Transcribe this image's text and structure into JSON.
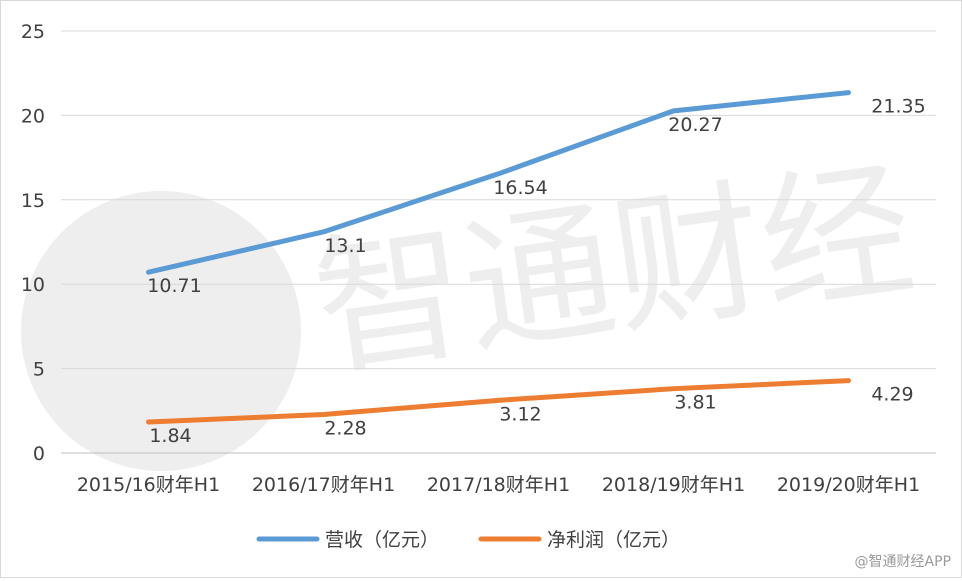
{
  "chart_data": {
    "type": "line",
    "title": "",
    "xlabel": "",
    "ylabel": "",
    "categories": [
      "2015/16财年H1",
      "2016/17财年H1",
      "2017/18财年H1",
      "2018/19财年H1",
      "2019/20财年H1"
    ],
    "ylim": [
      0,
      25
    ],
    "yticks": [
      0,
      5,
      10,
      15,
      20,
      25
    ],
    "grid": true,
    "legend_position": "bottom",
    "series": [
      {
        "name": "营收（亿元）",
        "color": "#5b9bd5",
        "values": [
          10.71,
          13.1,
          16.54,
          20.27,
          21.35
        ],
        "labels": [
          "10.71",
          "13.1",
          "16.54",
          "20.27",
          "21.35"
        ]
      },
      {
        "name": "净利润（亿元）",
        "color": "#ed7d31",
        "values": [
          1.84,
          2.28,
          3.12,
          3.81,
          4.29
        ],
        "labels": [
          "1.84",
          "2.28",
          "3.12",
          "3.81",
          "4.29"
        ]
      }
    ]
  },
  "watermark": {
    "logo_text": "智通财经",
    "credit": "@智通财经APP"
  }
}
